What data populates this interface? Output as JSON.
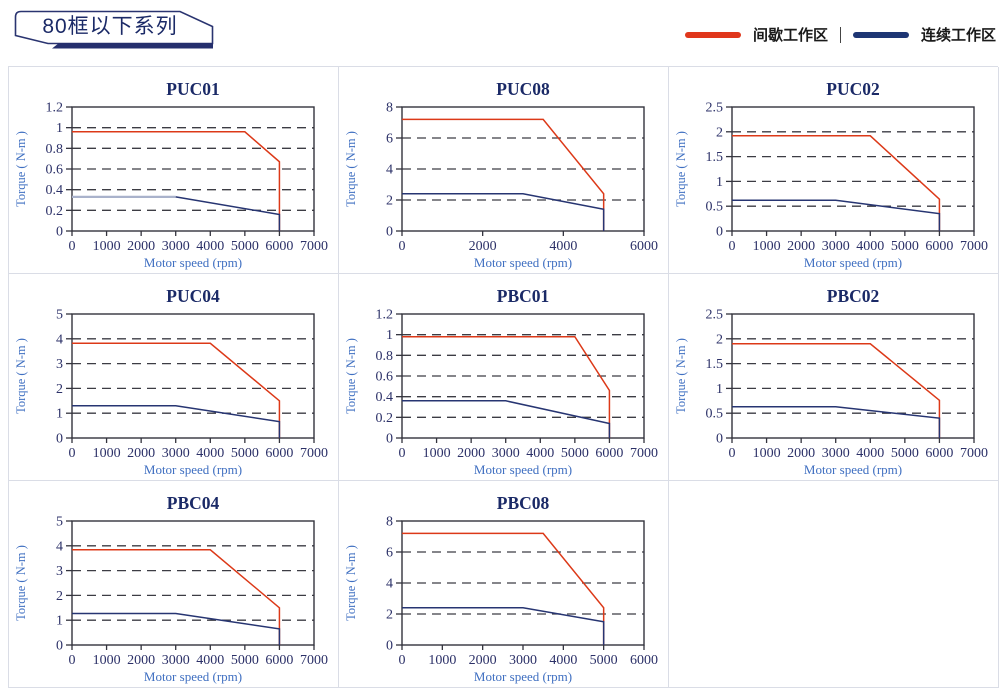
{
  "header": {
    "badge_label": "80框以下系列"
  },
  "legend": {
    "items": [
      {
        "label": "间歇工作区",
        "color": "#e0371c"
      },
      {
        "label": "连续工作区",
        "color": "#1e3674"
      }
    ],
    "separator": "|"
  },
  "style": {
    "red": "#dc3918",
    "navy": "#273572",
    "navy_light": "#a9b2cb",
    "axis": "#33333d",
    "grid_dash": "#3c3c44",
    "tick_label": "#2c3168",
    "title": "#1b2a67",
    "axis_label": "#3f6fc1",
    "cell_border": "#dadde6",
    "badge_outline": "#2a3470"
  },
  "chart_data": [
    {
      "type": "line",
      "title": "PUC01",
      "xlabel": "Motor speed (rpm)",
      "ylabel": "Torque ( N-m )",
      "xlim": [
        0,
        7000
      ],
      "ylim": [
        0,
        1.2
      ],
      "xticks": [
        0,
        1000,
        2000,
        3000,
        4000,
        5000,
        6000,
        7000
      ],
      "yticks": [
        0,
        0.2,
        0.4,
        0.6,
        0.8,
        1,
        1.2
      ],
      "grid": true,
      "series": [
        {
          "name": "间歇工作区",
          "color_key": "red",
          "points": [
            [
              0,
              0.96
            ],
            [
              5000,
              0.96
            ],
            [
              6000,
              0.67
            ],
            [
              6000,
              0
            ]
          ]
        },
        {
          "name": "连续工作区",
          "color_key": "navy",
          "flat_color_key": "navy_light",
          "points": [
            [
              0,
              0.33
            ],
            [
              3000,
              0.33
            ],
            [
              6000,
              0.16
            ],
            [
              6000,
              0
            ]
          ]
        }
      ]
    },
    {
      "type": "line",
      "title": "PUC08",
      "xlabel": "Motor speed (rpm)",
      "ylabel": "Torque ( N-m )",
      "xlim": [
        0,
        6000
      ],
      "ylim": [
        0,
        8
      ],
      "xticks": [
        0,
        2000,
        4000,
        6000
      ],
      "yticks": [
        0,
        2,
        4,
        6,
        8
      ],
      "grid": true,
      "series": [
        {
          "name": "间歇工作区",
          "color_key": "red",
          "points": [
            [
              0,
              7.2
            ],
            [
              3500,
              7.2
            ],
            [
              5000,
              2.4
            ],
            [
              5000,
              0
            ]
          ]
        },
        {
          "name": "连续工作区",
          "color_key": "navy",
          "points": [
            [
              0,
              2.4
            ],
            [
              3000,
              2.4
            ],
            [
              5000,
              1.4
            ],
            [
              5000,
              0
            ]
          ]
        }
      ]
    },
    {
      "type": "line",
      "title": "PUC02",
      "xlabel": "Motor speed (rpm)",
      "ylabel": "Torque ( N-m )",
      "xlim": [
        0,
        7000
      ],
      "ylim": [
        0,
        2.5
      ],
      "xticks": [
        0,
        1000,
        2000,
        3000,
        4000,
        5000,
        6000,
        7000
      ],
      "yticks": [
        0,
        0.5,
        1,
        1.5,
        2,
        2.5
      ],
      "grid": true,
      "series": [
        {
          "name": "间歇工作区",
          "color_key": "red",
          "points": [
            [
              0,
              1.92
            ],
            [
              4000,
              1.92
            ],
            [
              6000,
              0.64
            ],
            [
              6000,
              0
            ]
          ]
        },
        {
          "name": "连续工作区",
          "color_key": "navy",
          "points": [
            [
              0,
              0.62
            ],
            [
              3000,
              0.62
            ],
            [
              6000,
              0.35
            ],
            [
              6000,
              0
            ]
          ]
        }
      ]
    },
    {
      "type": "line",
      "title": "PUC04",
      "xlabel": "Motor speed (rpm)",
      "ylabel": "Torque ( N-m )",
      "xlim": [
        0,
        7000
      ],
      "ylim": [
        0,
        5
      ],
      "xticks": [
        0,
        1000,
        2000,
        3000,
        4000,
        5000,
        6000,
        7000
      ],
      "yticks": [
        0,
        1,
        2,
        3,
        4,
        5
      ],
      "grid": true,
      "series": [
        {
          "name": "间歇工作区",
          "color_key": "red",
          "points": [
            [
              0,
              3.82
            ],
            [
              4000,
              3.82
            ],
            [
              6000,
              1.5
            ],
            [
              6000,
              0
            ]
          ]
        },
        {
          "name": "连续工作区",
          "color_key": "navy",
          "points": [
            [
              0,
              1.3
            ],
            [
              3000,
              1.3
            ],
            [
              6000,
              0.66
            ],
            [
              6000,
              0
            ]
          ]
        }
      ]
    },
    {
      "type": "line",
      "title": "PBC01",
      "xlabel": "Motor speed (rpm)",
      "ylabel": "Torque ( N-m )",
      "xlim": [
        0,
        7000
      ],
      "ylim": [
        0,
        1.2
      ],
      "xticks": [
        0,
        1000,
        2000,
        3000,
        4000,
        5000,
        6000,
        7000
      ],
      "yticks": [
        0,
        0.2,
        0.4,
        0.6,
        0.8,
        1,
        1.2
      ],
      "grid": true,
      "series": [
        {
          "name": "间歇工作区",
          "color_key": "red",
          "points": [
            [
              0,
              0.98
            ],
            [
              5000,
              0.98
            ],
            [
              6000,
              0.46
            ],
            [
              6000,
              0
            ]
          ]
        },
        {
          "name": "连续工作区",
          "color_key": "navy",
          "points": [
            [
              0,
              0.36
            ],
            [
              3000,
              0.36
            ],
            [
              6000,
              0.14
            ],
            [
              6000,
              0
            ]
          ]
        }
      ]
    },
    {
      "type": "line",
      "title": "PBC02",
      "xlabel": "Motor speed (rpm)",
      "ylabel": "Torque ( N-m )",
      "xlim": [
        0,
        7000
      ],
      "ylim": [
        0,
        2.5
      ],
      "xticks": [
        0,
        1000,
        2000,
        3000,
        4000,
        5000,
        6000,
        7000
      ],
      "yticks": [
        0,
        0.5,
        1,
        1.5,
        2,
        2.5
      ],
      "grid": true,
      "series": [
        {
          "name": "间歇工作区",
          "color_key": "red",
          "points": [
            [
              0,
              1.9
            ],
            [
              4000,
              1.9
            ],
            [
              6000,
              0.76
            ],
            [
              6000,
              0
            ]
          ]
        },
        {
          "name": "连续工作区",
          "color_key": "navy",
          "points": [
            [
              0,
              0.63
            ],
            [
              3000,
              0.63
            ],
            [
              6000,
              0.4
            ],
            [
              6000,
              0
            ]
          ]
        }
      ]
    },
    {
      "type": "line",
      "title": "PBC04",
      "xlabel": "Motor speed (rpm)",
      "ylabel": "Torque ( N-m )",
      "xlim": [
        0,
        7000
      ],
      "ylim": [
        0,
        5
      ],
      "xticks": [
        0,
        1000,
        2000,
        3000,
        4000,
        5000,
        6000,
        7000
      ],
      "yticks": [
        0,
        1,
        2,
        3,
        4,
        5
      ],
      "grid": true,
      "series": [
        {
          "name": "间歇工作区",
          "color_key": "red",
          "points": [
            [
              0,
              3.84
            ],
            [
              4000,
              3.84
            ],
            [
              6000,
              1.5
            ],
            [
              6000,
              0
            ]
          ]
        },
        {
          "name": "连续工作区",
          "color_key": "navy",
          "points": [
            [
              0,
              1.27
            ],
            [
              3000,
              1.27
            ],
            [
              6000,
              0.65
            ],
            [
              6000,
              0
            ]
          ]
        }
      ]
    },
    {
      "type": "line",
      "title": "PBC08",
      "xlabel": "Motor speed (rpm)",
      "ylabel": "Torque ( N-m )",
      "xlim": [
        0,
        6000
      ],
      "ylim": [
        0,
        8
      ],
      "xticks": [
        0,
        1000,
        2000,
        3000,
        4000,
        5000,
        6000
      ],
      "yticks": [
        0,
        2,
        4,
        6,
        8
      ],
      "grid": true,
      "series": [
        {
          "name": "间歇工作区",
          "color_key": "red",
          "points": [
            [
              0,
              7.2
            ],
            [
              3500,
              7.2
            ],
            [
              5000,
              2.4
            ],
            [
              5000,
              0
            ]
          ]
        },
        {
          "name": "连续工作区",
          "color_key": "navy",
          "points": [
            [
              0,
              2.4
            ],
            [
              3000,
              2.4
            ],
            [
              5000,
              1.5
            ],
            [
              5000,
              0
            ]
          ]
        }
      ]
    }
  ]
}
